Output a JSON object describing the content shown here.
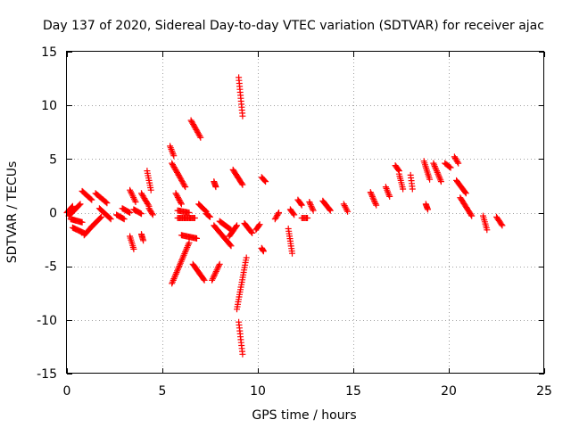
{
  "chart_data": {
    "type": "scatter",
    "title": "Day 137 of 2020, Sidereal Day-to-day VTEC variation (SDTVAR) for receiver ajac",
    "xlabel": "GPS time / hours",
    "ylabel": "SDTVAR / TECUs",
    "xlim": [
      0,
      25
    ],
    "ylim": [
      -15,
      15
    ],
    "xticks": [
      "0",
      "5",
      "10",
      "15",
      "20",
      "25"
    ],
    "yticks": [
      "15",
      "10",
      "5",
      "0",
      "-5",
      "-10",
      "-15"
    ],
    "grid": true,
    "marker": "plus",
    "color": "#ff0000",
    "series": [
      {
        "name": "SDTVAR",
        "x": [],
        "y": []
      }
    ],
    "segments": [
      [
        0.0,
        0.3,
        0.0,
        0.6
      ],
      [
        0.1,
        0.7,
        -0.3,
        0.8
      ],
      [
        0.2,
        0.8,
        -0.6,
        -0.9
      ],
      [
        0.3,
        0.9,
        -1.4,
        -1.9
      ],
      [
        0.8,
        1.3,
        2.0,
        1.2
      ],
      [
        0.9,
        1.3,
        -2.1,
        -1.3
      ],
      [
        1.3,
        1.8,
        -1.3,
        -0.4
      ],
      [
        1.5,
        2.1,
        1.8,
        0.9
      ],
      [
        1.7,
        2.3,
        0.4,
        -0.6
      ],
      [
        2.6,
        3.0,
        -0.2,
        -0.6
      ],
      [
        2.9,
        3.3,
        0.4,
        0.0
      ],
      [
        3.3,
        3.5,
        -2.2,
        -3.4
      ],
      [
        3.3,
        3.6,
        2.1,
        1.0
      ],
      [
        3.5,
        3.9,
        0.3,
        -0.1
      ],
      [
        3.9,
        4.3,
        1.8,
        0.6
      ],
      [
        3.9,
        4.0,
        -2.0,
        -2.6
      ],
      [
        4.2,
        4.4,
        3.9,
        2.1
      ],
      [
        4.3,
        4.5,
        0.4,
        -0.2
      ],
      [
        5.4,
        5.6,
        6.2,
        5.3
      ],
      [
        5.5,
        6.2,
        4.6,
        2.4
      ],
      [
        5.7,
        6.0,
        1.8,
        0.8
      ],
      [
        5.8,
        6.4,
        0.2,
        0.0
      ],
      [
        5.8,
        6.7,
        -0.5,
        -0.5
      ],
      [
        5.5,
        6.4,
        -6.6,
        -2.8
      ],
      [
        6.0,
        6.8,
        -2.1,
        -2.4
      ],
      [
        6.5,
        7.0,
        8.6,
        7.0
      ],
      [
        6.6,
        7.2,
        -4.8,
        -6.3
      ],
      [
        6.9,
        7.3,
        0.8,
        0.1
      ],
      [
        7.3,
        7.5,
        -0.1,
        -0.4
      ],
      [
        7.7,
        7.8,
        2.9,
        2.4
      ],
      [
        7.7,
        8.6,
        -1.2,
        -3.1
      ],
      [
        7.6,
        8.0,
        -6.3,
        -4.8
      ],
      [
        8.0,
        8.6,
        -0.8,
        -1.6
      ],
      [
        8.5,
        8.9,
        -2.2,
        -1.2
      ],
      [
        8.7,
        9.2,
        4.0,
        2.6
      ],
      [
        9.0,
        9.2,
        12.6,
        9.0
      ],
      [
        8.9,
        9.4,
        -9.0,
        -4.2
      ],
      [
        9.0,
        9.2,
        -10.2,
        -13.2
      ],
      [
        9.3,
        9.7,
        -1.0,
        -1.9
      ],
      [
        9.9,
        10.1,
        -1.6,
        -1.1
      ],
      [
        10.2,
        10.4,
        3.3,
        2.9
      ],
      [
        10.2,
        10.3,
        -3.3,
        -3.6
      ],
      [
        10.9,
        11.1,
        -0.6,
        0.0
      ],
      [
        11.6,
        11.8,
        -1.5,
        -3.8
      ],
      [
        11.7,
        11.9,
        0.3,
        -0.2
      ],
      [
        12.1,
        12.3,
        1.2,
        0.7
      ],
      [
        12.3,
        12.6,
        -0.5,
        -0.5
      ],
      [
        12.7,
        12.9,
        1.0,
        0.2
      ],
      [
        13.4,
        13.8,
        1.1,
        0.2
      ],
      [
        14.5,
        14.7,
        0.8,
        0.1
      ],
      [
        15.9,
        16.2,
        1.9,
        0.7
      ],
      [
        16.7,
        16.9,
        2.4,
        1.5
      ],
      [
        17.2,
        17.4,
        4.4,
        3.9
      ],
      [
        17.4,
        17.6,
        3.6,
        2.2
      ],
      [
        18.0,
        18.1,
        3.5,
        2.2
      ],
      [
        18.7,
        19.0,
        4.8,
        3.1
      ],
      [
        18.8,
        18.9,
        0.8,
        0.3
      ],
      [
        19.2,
        19.6,
        4.6,
        2.9
      ],
      [
        19.8,
        20.1,
        4.6,
        4.2
      ],
      [
        20.3,
        20.5,
        5.2,
        4.6
      ],
      [
        20.4,
        20.9,
        3.0,
        1.8
      ],
      [
        20.6,
        21.2,
        1.4,
        -0.3
      ],
      [
        21.8,
        22.0,
        -0.3,
        -1.6
      ],
      [
        22.5,
        22.8,
        -0.4,
        -1.2
      ]
    ]
  }
}
